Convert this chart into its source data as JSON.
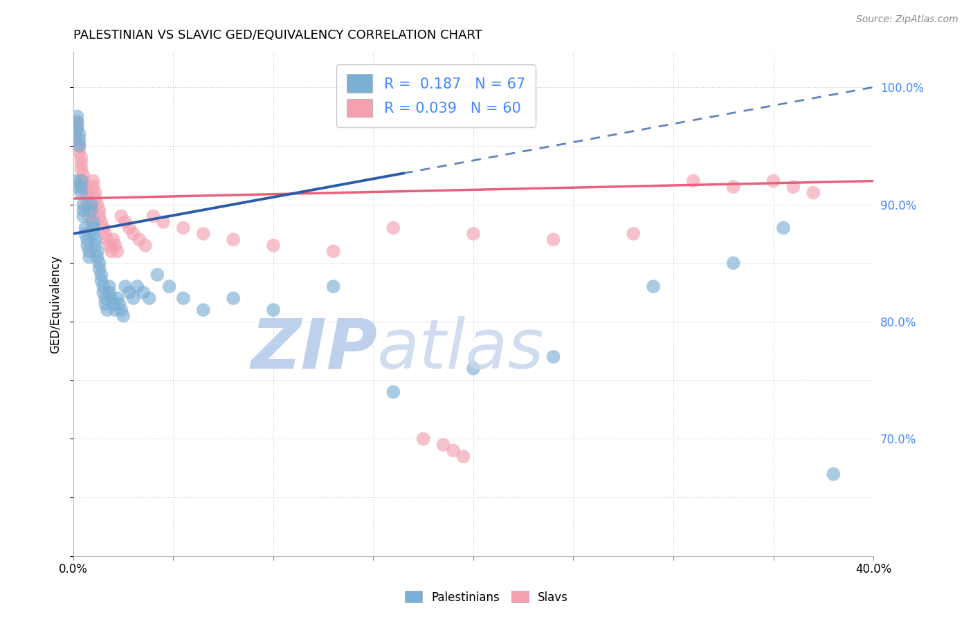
{
  "title": "PALESTINIAN VS SLAVIC GED/EQUIVALENCY CORRELATION CHART",
  "source": "Source: ZipAtlas.com",
  "ylabel": "GED/Equivalency",
  "xlim": [
    0.0,
    0.4
  ],
  "ylim": [
    0.6,
    1.03
  ],
  "r_palestinian": 0.187,
  "n_palestinian": 67,
  "r_slavic": 0.039,
  "n_slavic": 60,
  "blue_color": "#7BAFD4",
  "pink_color": "#F4A0B0",
  "blue_line_color": "#2B5BA8",
  "pink_line_color": "#E8607A",
  "right_axis_color": "#4488FF",
  "legend_r_color": "#4488FF",
  "watermark_color": "#D0DFF0",
  "pal_x": [
    0.001,
    0.001,
    0.002,
    0.002,
    0.002,
    0.003,
    0.003,
    0.003,
    0.004,
    0.004,
    0.004,
    0.005,
    0.005,
    0.005,
    0.006,
    0.006,
    0.007,
    0.007,
    0.008,
    0.008,
    0.009,
    0.009,
    0.01,
    0.01,
    0.01,
    0.011,
    0.011,
    0.012,
    0.012,
    0.013,
    0.013,
    0.014,
    0.014,
    0.015,
    0.015,
    0.016,
    0.016,
    0.017,
    0.018,
    0.018,
    0.019,
    0.02,
    0.021,
    0.022,
    0.023,
    0.024,
    0.025,
    0.026,
    0.028,
    0.03,
    0.032,
    0.035,
    0.038,
    0.042,
    0.048,
    0.055,
    0.065,
    0.08,
    0.1,
    0.13,
    0.16,
    0.2,
    0.24,
    0.29,
    0.33,
    0.355,
    0.38
  ],
  "pal_y": [
    0.92,
    0.915,
    0.97,
    0.975,
    0.965,
    0.96,
    0.955,
    0.95,
    0.92,
    0.915,
    0.91,
    0.9,
    0.895,
    0.89,
    0.88,
    0.875,
    0.87,
    0.865,
    0.86,
    0.855,
    0.895,
    0.9,
    0.885,
    0.88,
    0.875,
    0.87,
    0.865,
    0.86,
    0.855,
    0.85,
    0.845,
    0.84,
    0.835,
    0.83,
    0.825,
    0.82,
    0.815,
    0.81,
    0.83,
    0.825,
    0.82,
    0.815,
    0.81,
    0.82,
    0.815,
    0.81,
    0.805,
    0.83,
    0.825,
    0.82,
    0.83,
    0.825,
    0.82,
    0.84,
    0.83,
    0.82,
    0.81,
    0.82,
    0.81,
    0.83,
    0.74,
    0.76,
    0.77,
    0.83,
    0.85,
    0.88,
    0.67
  ],
  "slav_x": [
    0.001,
    0.001,
    0.002,
    0.002,
    0.003,
    0.003,
    0.004,
    0.004,
    0.004,
    0.005,
    0.005,
    0.006,
    0.006,
    0.007,
    0.007,
    0.008,
    0.008,
    0.009,
    0.01,
    0.01,
    0.011,
    0.011,
    0.012,
    0.013,
    0.013,
    0.014,
    0.015,
    0.016,
    0.017,
    0.018,
    0.019,
    0.02,
    0.021,
    0.022,
    0.024,
    0.026,
    0.028,
    0.03,
    0.033,
    0.036,
    0.04,
    0.045,
    0.055,
    0.065,
    0.08,
    0.1,
    0.13,
    0.16,
    0.2,
    0.24,
    0.28,
    0.31,
    0.33,
    0.35,
    0.36,
    0.37,
    0.175,
    0.185,
    0.19,
    0.195
  ],
  "slav_y": [
    0.96,
    0.955,
    0.97,
    0.965,
    0.95,
    0.945,
    0.94,
    0.935,
    0.93,
    0.925,
    0.92,
    0.915,
    0.91,
    0.905,
    0.9,
    0.895,
    0.89,
    0.885,
    0.92,
    0.915,
    0.91,
    0.905,
    0.9,
    0.895,
    0.89,
    0.885,
    0.88,
    0.875,
    0.87,
    0.865,
    0.86,
    0.87,
    0.865,
    0.86,
    0.89,
    0.885,
    0.88,
    0.875,
    0.87,
    0.865,
    0.89,
    0.885,
    0.88,
    0.875,
    0.87,
    0.865,
    0.86,
    0.88,
    0.875,
    0.87,
    0.875,
    0.92,
    0.915,
    0.92,
    0.915,
    0.91,
    0.7,
    0.695,
    0.69,
    0.685
  ]
}
